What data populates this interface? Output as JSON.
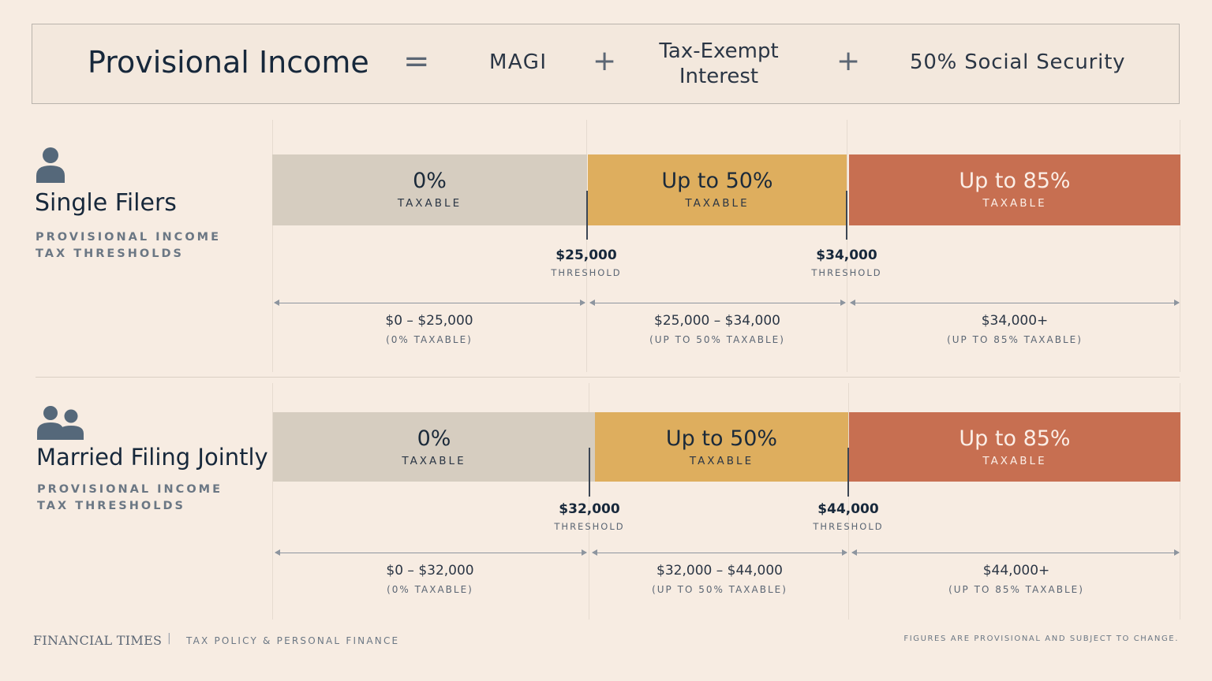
{
  "formula": {
    "title": "Provisional Income",
    "equals": "=",
    "term1": "MAGI",
    "plus1": "+",
    "term2_line1": "Tax-Exempt",
    "term2_line2": "Interest",
    "plus2": "+",
    "term3": "50% Social Security"
  },
  "colors": {
    "band_zero": "#d6cdc0",
    "band_fifty": "#deae5e",
    "band_eightyfive": "#c76f51",
    "icon": "#55687a"
  },
  "groups": [
    {
      "title": "Single Filers",
      "icon": "person-icon",
      "subtitle_line1": "PROVISIONAL INCOME",
      "subtitle_line2": "TAX THRESHOLDS",
      "bands": [
        {
          "pct": "0%",
          "label": "TAXABLE"
        },
        {
          "pct": "Up to 50%",
          "label": "TAXABLE"
        },
        {
          "pct": "Up to 85%",
          "label": "TAXABLE"
        }
      ],
      "thresholds": [
        {
          "value": "$25,000",
          "label": "THRESHOLD"
        },
        {
          "value": "$34,000",
          "label": "THRESHOLD"
        }
      ],
      "ranges": [
        {
          "value": "$0 – $25,000",
          "note": "(0% TAXABLE)"
        },
        {
          "value": "$25,000 – $34,000",
          "note": "(UP TO 50% TAXABLE)"
        },
        {
          "value": "$34,000+",
          "note": "(UP TO 85% TAXABLE)"
        }
      ]
    },
    {
      "title": "Married Filing Jointly",
      "icon": "couple-icon",
      "subtitle_line1": "PROVISIONAL INCOME",
      "subtitle_line2": "TAX THRESHOLDS",
      "bands": [
        {
          "pct": "0%",
          "label": "TAXABLE"
        },
        {
          "pct": "Up to 50%",
          "label": "TAXABLE"
        },
        {
          "pct": "Up to 85%",
          "label": "TAXABLE"
        }
      ],
      "thresholds": [
        {
          "value": "$32,000",
          "label": "THRESHOLD"
        },
        {
          "value": "$44,000",
          "label": "THRESHOLD"
        }
      ],
      "ranges": [
        {
          "value": "$0 – $32,000",
          "note": "(0% TAXABLE)"
        },
        {
          "value": "$32,000 – $44,000",
          "note": "(UP TO 50% TAXABLE)"
        },
        {
          "value": "$44,000+",
          "note": "(UP TO 85% TAXABLE)"
        }
      ]
    }
  ],
  "footer": {
    "brand": "FINANCIAL TIMES",
    "divider": "|",
    "section": "TAX POLICY & PERSONAL FINANCE",
    "note": "FIGURES ARE PROVISIONAL AND SUBJECT TO CHANGE."
  }
}
